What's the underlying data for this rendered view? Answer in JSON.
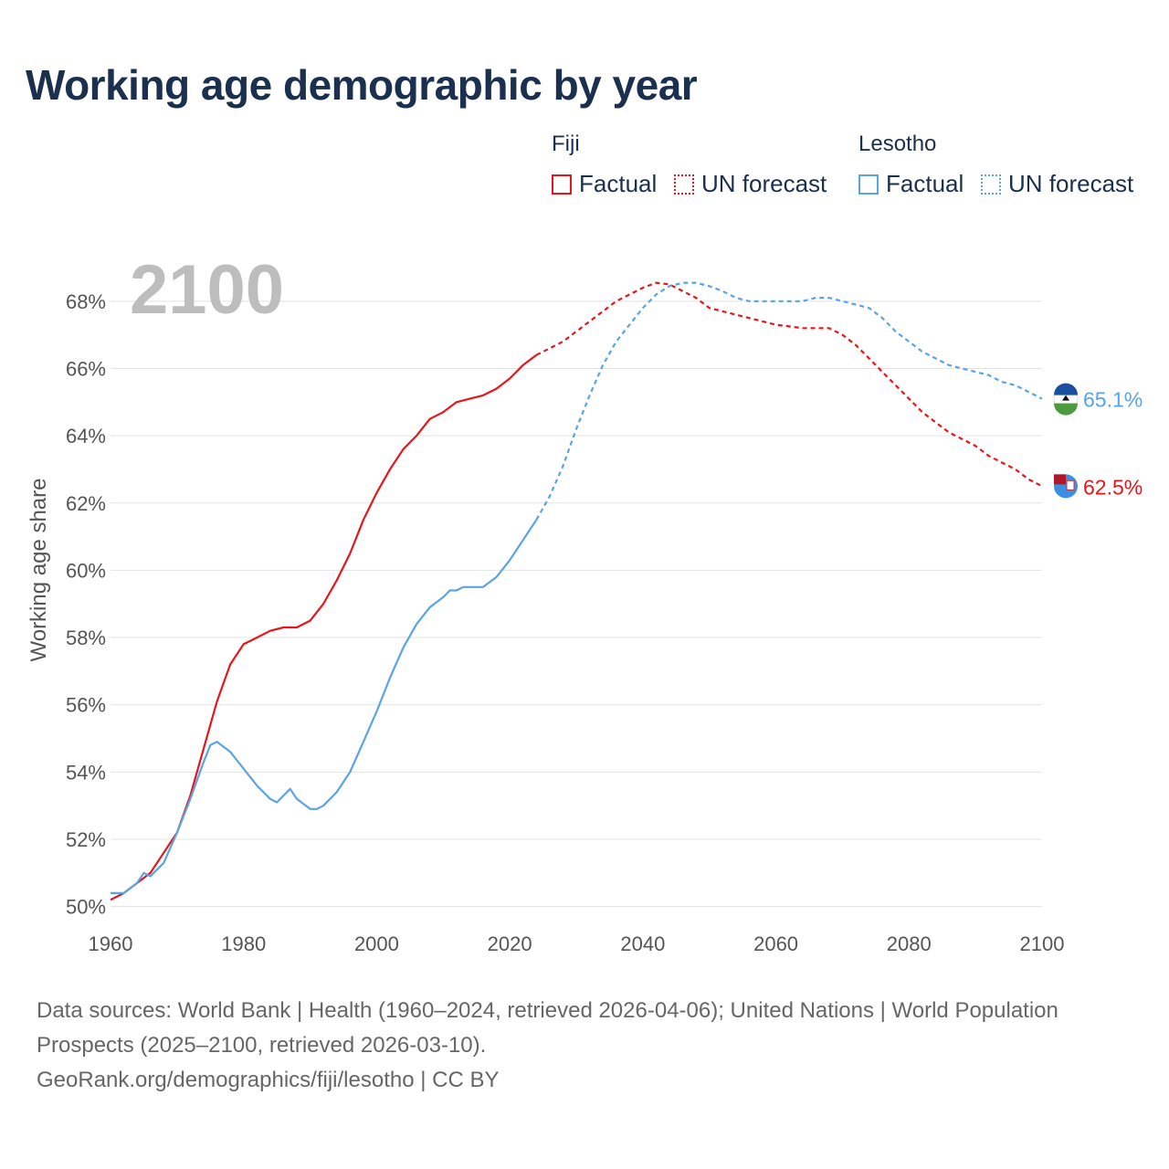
{
  "title": "Working age demographic by year",
  "legend": {
    "groups": [
      {
        "name": "Fiji",
        "factual_label": "Factual",
        "forecast_label": "UN forecast",
        "color": "#e8151b"
      },
      {
        "name": "Lesotho",
        "factual_label": "Factual",
        "forecast_label": "UN forecast",
        "color": "#5aa3e6"
      }
    ]
  },
  "year_watermark": "2100",
  "chart_data": {
    "type": "line",
    "title": "Working age demographic by year",
    "xlabel": "",
    "ylabel": "Working age share",
    "xlim": [
      1960,
      2100
    ],
    "ylim": [
      49.8,
      69
    ],
    "x_ticks": [
      "1960",
      "1980",
      "2000",
      "2020",
      "2040",
      "2060",
      "2080",
      "2100"
    ],
    "y_ticks": [
      "50%",
      "52%",
      "54%",
      "56%",
      "58%",
      "60%",
      "62%",
      "64%",
      "66%",
      "68%"
    ],
    "factual_end_year": 2024,
    "series": [
      {
        "name": "Fiji",
        "color": "#e8151b",
        "end_label": "62.5%",
        "points": [
          [
            1960,
            50.2
          ],
          [
            1962,
            50.4
          ],
          [
            1964,
            50.7
          ],
          [
            1966,
            51.0
          ],
          [
            1968,
            51.6
          ],
          [
            1970,
            52.2
          ],
          [
            1972,
            53.3
          ],
          [
            1974,
            54.7
          ],
          [
            1976,
            56.1
          ],
          [
            1978,
            57.2
          ],
          [
            1980,
            57.8
          ],
          [
            1982,
            58.0
          ],
          [
            1984,
            58.2
          ],
          [
            1986,
            58.3
          ],
          [
            1988,
            58.3
          ],
          [
            1990,
            58.5
          ],
          [
            1992,
            59.0
          ],
          [
            1994,
            59.7
          ],
          [
            1996,
            60.5
          ],
          [
            1998,
            61.5
          ],
          [
            2000,
            62.3
          ],
          [
            2002,
            63.0
          ],
          [
            2004,
            63.6
          ],
          [
            2006,
            64.0
          ],
          [
            2008,
            64.5
          ],
          [
            2010,
            64.7
          ],
          [
            2012,
            65.0
          ],
          [
            2014,
            65.1
          ],
          [
            2016,
            65.2
          ],
          [
            2018,
            65.4
          ],
          [
            2020,
            65.7
          ],
          [
            2022,
            66.1
          ],
          [
            2024,
            66.4
          ],
          [
            2026,
            66.6
          ],
          [
            2028,
            66.8
          ],
          [
            2030,
            67.1
          ],
          [
            2032,
            67.4
          ],
          [
            2034,
            67.7
          ],
          [
            2036,
            68.0
          ],
          [
            2038,
            68.2
          ],
          [
            2040,
            68.4
          ],
          [
            2042,
            68.55
          ],
          [
            2044,
            68.5
          ],
          [
            2046,
            68.3
          ],
          [
            2048,
            68.1
          ],
          [
            2050,
            67.8
          ],
          [
            2052,
            67.7
          ],
          [
            2054,
            67.6
          ],
          [
            2056,
            67.5
          ],
          [
            2058,
            67.4
          ],
          [
            2060,
            67.3
          ],
          [
            2062,
            67.25
          ],
          [
            2064,
            67.2
          ],
          [
            2066,
            67.2
          ],
          [
            2068,
            67.2
          ],
          [
            2070,
            67.0
          ],
          [
            2072,
            66.7
          ],
          [
            2074,
            66.3
          ],
          [
            2076,
            65.9
          ],
          [
            2078,
            65.5
          ],
          [
            2080,
            65.1
          ],
          [
            2082,
            64.7
          ],
          [
            2084,
            64.4
          ],
          [
            2086,
            64.1
          ],
          [
            2088,
            63.9
          ],
          [
            2090,
            63.7
          ],
          [
            2092,
            63.4
          ],
          [
            2094,
            63.2
          ],
          [
            2096,
            63.0
          ],
          [
            2098,
            62.7
          ],
          [
            2100,
            62.5
          ]
        ]
      },
      {
        "name": "Lesotho",
        "color": "#5aa3e6",
        "end_label": "65.1%",
        "points": [
          [
            1960,
            50.4
          ],
          [
            1962,
            50.4
          ],
          [
            1964,
            50.7
          ],
          [
            1965,
            51.0
          ],
          [
            1966,
            50.9
          ],
          [
            1968,
            51.3
          ],
          [
            1970,
            52.2
          ],
          [
            1972,
            53.2
          ],
          [
            1974,
            54.3
          ],
          [
            1975,
            54.8
          ],
          [
            1976,
            54.9
          ],
          [
            1978,
            54.6
          ],
          [
            1980,
            54.1
          ],
          [
            1982,
            53.6
          ],
          [
            1984,
            53.2
          ],
          [
            1985,
            53.1
          ],
          [
            1986,
            53.3
          ],
          [
            1987,
            53.5
          ],
          [
            1988,
            53.2
          ],
          [
            1990,
            52.9
          ],
          [
            1991,
            52.9
          ],
          [
            1992,
            53.0
          ],
          [
            1994,
            53.4
          ],
          [
            1996,
            54.0
          ],
          [
            1998,
            54.9
          ],
          [
            2000,
            55.8
          ],
          [
            2002,
            56.8
          ],
          [
            2004,
            57.7
          ],
          [
            2006,
            58.4
          ],
          [
            2008,
            58.9
          ],
          [
            2010,
            59.2
          ],
          [
            2011,
            59.4
          ],
          [
            2012,
            59.4
          ],
          [
            2013,
            59.5
          ],
          [
            2014,
            59.5
          ],
          [
            2016,
            59.5
          ],
          [
            2018,
            59.8
          ],
          [
            2020,
            60.3
          ],
          [
            2022,
            60.9
          ],
          [
            2024,
            61.5
          ],
          [
            2026,
            62.2
          ],
          [
            2028,
            63.1
          ],
          [
            2030,
            64.2
          ],
          [
            2032,
            65.2
          ],
          [
            2034,
            66.1
          ],
          [
            2036,
            66.8
          ],
          [
            2038,
            67.3
          ],
          [
            2040,
            67.8
          ],
          [
            2042,
            68.2
          ],
          [
            2044,
            68.45
          ],
          [
            2046,
            68.55
          ],
          [
            2048,
            68.55
          ],
          [
            2050,
            68.45
          ],
          [
            2052,
            68.3
          ],
          [
            2054,
            68.1
          ],
          [
            2056,
            68.0
          ],
          [
            2058,
            68.0
          ],
          [
            2060,
            68.0
          ],
          [
            2062,
            68.0
          ],
          [
            2064,
            68.0
          ],
          [
            2066,
            68.1
          ],
          [
            2068,
            68.1
          ],
          [
            2070,
            68.0
          ],
          [
            2072,
            67.9
          ],
          [
            2074,
            67.8
          ],
          [
            2076,
            67.5
          ],
          [
            2078,
            67.1
          ],
          [
            2080,
            66.8
          ],
          [
            2082,
            66.5
          ],
          [
            2084,
            66.3
          ],
          [
            2086,
            66.1
          ],
          [
            2088,
            66.0
          ],
          [
            2090,
            65.9
          ],
          [
            2092,
            65.8
          ],
          [
            2094,
            65.6
          ],
          [
            2096,
            65.5
          ],
          [
            2098,
            65.3
          ],
          [
            2100,
            65.1
          ]
        ]
      }
    ]
  },
  "footer": {
    "sources": "Data sources: World Bank | Health (1960–2024, retrieved 2026-04-06); United Nations | World Population Prospects (2025–2100, retrieved 2026-03-10).",
    "attribution": "GeoRank.org/demographics/fiji/lesotho | CC BY"
  }
}
